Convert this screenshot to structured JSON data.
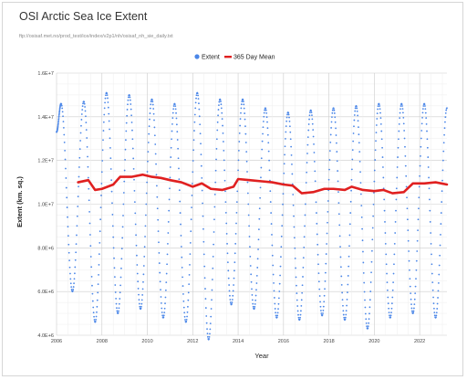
{
  "chart_data": {
    "type": "line",
    "title": "OSI Arctic Sea Ice Extent",
    "subtitle": "ftp://osisaf.met.no/prod_test/ice/index/v2p1/nh/osisaf_nh_sie_daily.txt",
    "xlabel": "Year",
    "ylabel": "Extent (km. sq.)",
    "xlim": [
      2006,
      2023.2
    ],
    "ylim": [
      4000000,
      16000000
    ],
    "x_ticks": [
      "2006",
      "2008",
      "2010",
      "2012",
      "2014",
      "2016",
      "2018",
      "2020",
      "2022"
    ],
    "y_ticks": [
      "4.0E+6",
      "6.0E+6",
      "8.0E+6",
      "1.0E+7",
      "1.2E+7",
      "1.4E+7",
      "1.6E+7"
    ],
    "grid": true,
    "legend_position": "top-center",
    "series": [
      {
        "name": "Extent",
        "style": "dots",
        "color": "#4a86e8",
        "annual_max": [
          14600000,
          14700000,
          15100000,
          15000000,
          14800000,
          14600000,
          15100000,
          14800000,
          14800000,
          14400000,
          14200000,
          14300000,
          14400000,
          14500000,
          14600000,
          14600000,
          14600000,
          14400000
        ],
        "annual_min": [
          6000000,
          4600000,
          5000000,
          5200000,
          4800000,
          4600000,
          3800000,
          5400000,
          5200000,
          4800000,
          4700000,
          4900000,
          4700000,
          4300000,
          4800000,
          5000000,
          4800000
        ],
        "points": [
          {
            "x": 2006.0,
            "y": 13300000
          },
          {
            "x": 2006.2,
            "y": 14600000
          },
          {
            "x": 2006.7,
            "y": 6000000
          },
          {
            "x": 2007.2,
            "y": 14700000
          },
          {
            "x": 2007.7,
            "y": 4600000
          },
          {
            "x": 2008.2,
            "y": 15100000
          },
          {
            "x": 2008.7,
            "y": 5000000
          },
          {
            "x": 2009.2,
            "y": 15000000
          },
          {
            "x": 2009.7,
            "y": 5200000
          },
          {
            "x": 2010.2,
            "y": 14800000
          },
          {
            "x": 2010.7,
            "y": 4800000
          },
          {
            "x": 2011.2,
            "y": 14600000
          },
          {
            "x": 2011.7,
            "y": 4600000
          },
          {
            "x": 2012.2,
            "y": 15100000
          },
          {
            "x": 2012.7,
            "y": 3800000
          },
          {
            "x": 2013.2,
            "y": 14800000
          },
          {
            "x": 2013.7,
            "y": 5400000
          },
          {
            "x": 2014.2,
            "y": 14800000
          },
          {
            "x": 2014.7,
            "y": 5200000
          },
          {
            "x": 2015.2,
            "y": 14400000
          },
          {
            "x": 2015.7,
            "y": 4800000
          },
          {
            "x": 2016.2,
            "y": 14200000
          },
          {
            "x": 2016.7,
            "y": 4700000
          },
          {
            "x": 2017.2,
            "y": 14300000
          },
          {
            "x": 2017.7,
            "y": 4900000
          },
          {
            "x": 2018.2,
            "y": 14400000
          },
          {
            "x": 2018.7,
            "y": 4700000
          },
          {
            "x": 2019.2,
            "y": 14500000
          },
          {
            "x": 2019.7,
            "y": 4300000
          },
          {
            "x": 2020.2,
            "y": 14600000
          },
          {
            "x": 2020.7,
            "y": 4800000
          },
          {
            "x": 2021.2,
            "y": 14600000
          },
          {
            "x": 2021.7,
            "y": 5000000
          },
          {
            "x": 2022.2,
            "y": 14600000
          },
          {
            "x": 2022.7,
            "y": 4800000
          },
          {
            "x": 2023.2,
            "y": 14400000
          }
        ]
      },
      {
        "name": "365 Day Mean",
        "style": "line",
        "color": "#e02020",
        "points": [
          {
            "x": 2006.95,
            "y": 11000000
          },
          {
            "x": 2007.4,
            "y": 11100000
          },
          {
            "x": 2007.7,
            "y": 10650000
          },
          {
            "x": 2008.0,
            "y": 10700000
          },
          {
            "x": 2008.5,
            "y": 10900000
          },
          {
            "x": 2008.8,
            "y": 11250000
          },
          {
            "x": 2009.3,
            "y": 11250000
          },
          {
            "x": 2009.8,
            "y": 11350000
          },
          {
            "x": 2010.2,
            "y": 11250000
          },
          {
            "x": 2010.6,
            "y": 11200000
          },
          {
            "x": 2011.0,
            "y": 11100000
          },
          {
            "x": 2011.5,
            "y": 11000000
          },
          {
            "x": 2012.0,
            "y": 10800000
          },
          {
            "x": 2012.4,
            "y": 10950000
          },
          {
            "x": 2012.8,
            "y": 10700000
          },
          {
            "x": 2013.3,
            "y": 10650000
          },
          {
            "x": 2013.8,
            "y": 10800000
          },
          {
            "x": 2014.0,
            "y": 11150000
          },
          {
            "x": 2014.5,
            "y": 11100000
          },
          {
            "x": 2015.0,
            "y": 11050000
          },
          {
            "x": 2015.5,
            "y": 11000000
          },
          {
            "x": 2016.0,
            "y": 10900000
          },
          {
            "x": 2016.4,
            "y": 10850000
          },
          {
            "x": 2016.8,
            "y": 10500000
          },
          {
            "x": 2017.3,
            "y": 10550000
          },
          {
            "x": 2017.8,
            "y": 10700000
          },
          {
            "x": 2018.2,
            "y": 10700000
          },
          {
            "x": 2018.7,
            "y": 10650000
          },
          {
            "x": 2019.0,
            "y": 10800000
          },
          {
            "x": 2019.5,
            "y": 10650000
          },
          {
            "x": 2020.0,
            "y": 10600000
          },
          {
            "x": 2020.4,
            "y": 10650000
          },
          {
            "x": 2020.8,
            "y": 10500000
          },
          {
            "x": 2021.3,
            "y": 10550000
          },
          {
            "x": 2021.7,
            "y": 10950000
          },
          {
            "x": 2022.2,
            "y": 10950000
          },
          {
            "x": 2022.7,
            "y": 11000000
          },
          {
            "x": 2023.2,
            "y": 10900000
          }
        ]
      }
    ]
  }
}
